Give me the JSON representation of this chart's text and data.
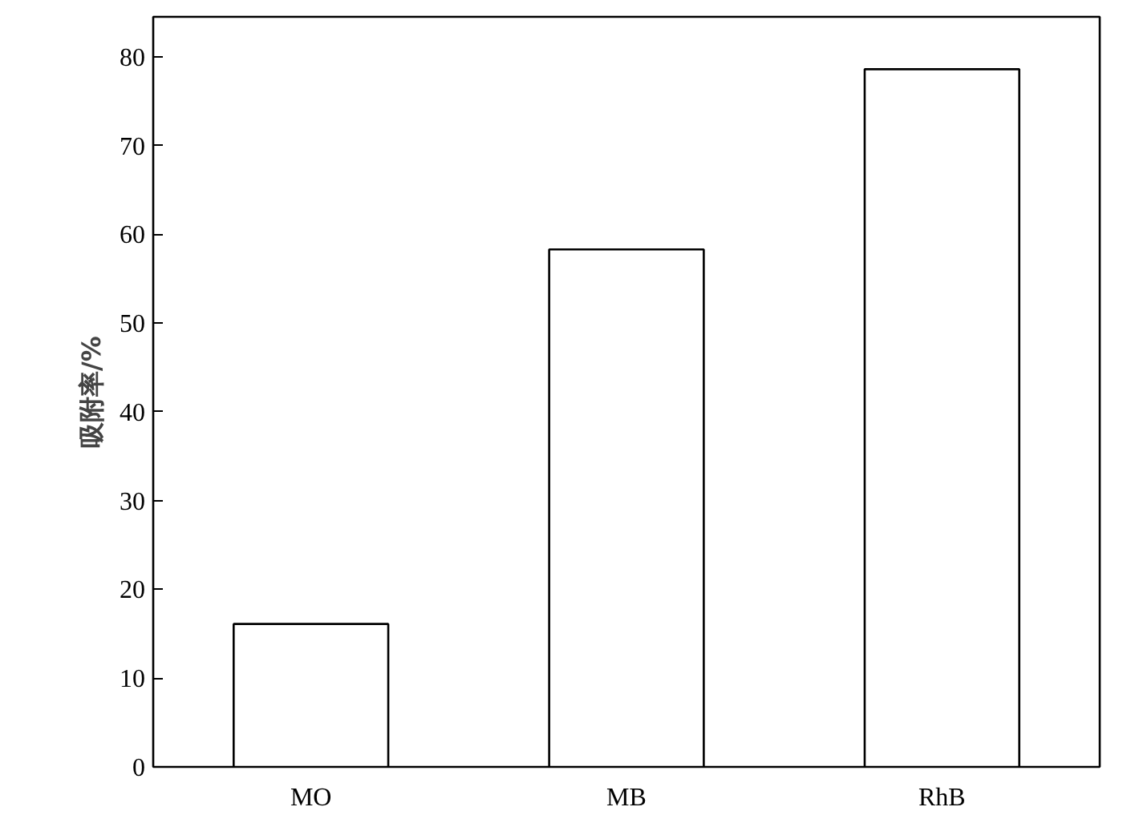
{
  "chart_data": {
    "type": "bar",
    "ylabel": "吸附率/%",
    "categories": [
      "MO",
      "MB",
      "RhB"
    ],
    "values": [
      16.1,
      58.3,
      78.6
    ],
    "color": "#ffffff",
    "ylim": [
      0,
      84.5
    ],
    "yticks": [
      0,
      10,
      20,
      30,
      40,
      50,
      60,
      70,
      80
    ],
    "grid": false
  }
}
